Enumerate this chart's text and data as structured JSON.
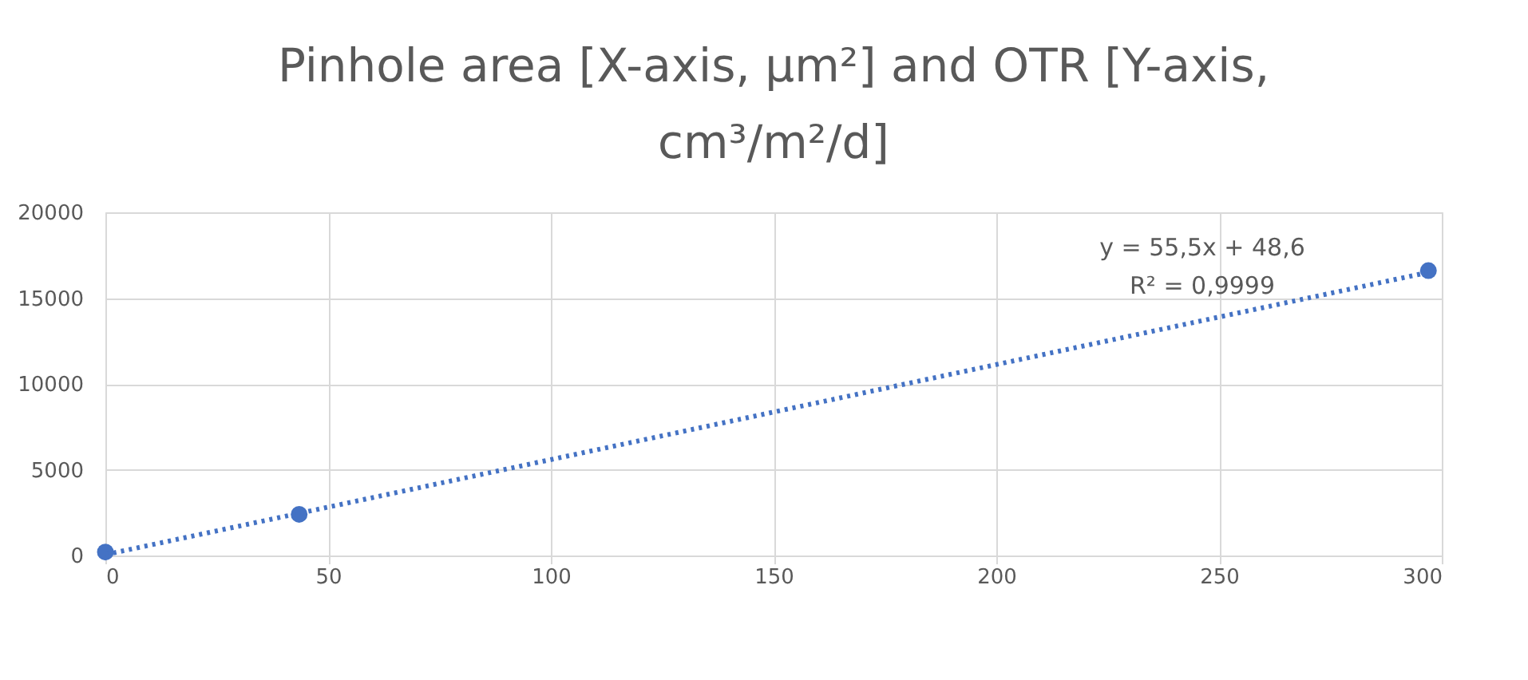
{
  "chart_data": {
    "type": "scatter",
    "title": "Pinhole area [X-axis, µm²] and OTR [Y-axis, cm³/m²/d]",
    "series": [
      {
        "color": "#4472c4",
        "marker": "circle",
        "x": [
          0,
          43.5,
          297
        ],
        "values": [
          200,
          2400,
          16600
        ]
      },
      {
        "type": "line",
        "color": "#4472c4",
        "line_style": "dotted",
        "x": [
          0,
          297
        ],
        "values": [
          50,
          16500
        ]
      }
    ],
    "xlim": [
      0,
      300
    ],
    "xticks": [
      0,
      50,
      100,
      150,
      200,
      250,
      300
    ],
    "ylim": [
      0,
      20000
    ],
    "yticks": [
      0,
      5000,
      10000,
      15000,
      20000
    ],
    "grid": true,
    "annotations": [
      "y = 55,5x + 48,6",
      "R² = 0,9999"
    ]
  }
}
